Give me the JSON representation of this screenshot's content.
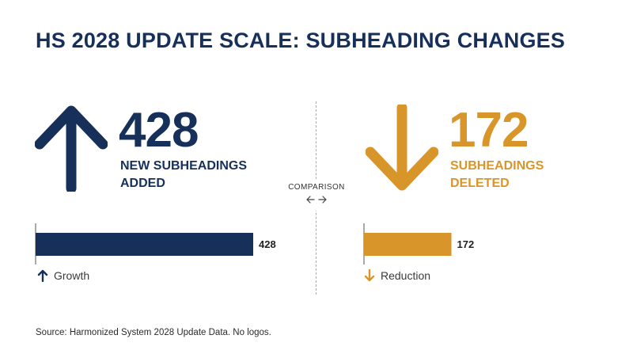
{
  "title": "HS 2028 UPDATE SCALE: SUBHEADING CHANGES",
  "comparison_label": "COMPARISON",
  "stats": [
    {
      "value": "428",
      "label": "NEW SUBHEADINGS\nADDED",
      "icon": "arrow-up-icon",
      "color": "#17305a"
    },
    {
      "value": "172",
      "label": "SUBHEADINGS\nDELETED",
      "icon": "arrow-down-icon",
      "color": "#d8962a"
    }
  ],
  "chart_data": {
    "type": "bar",
    "categories": [
      "Growth",
      "Reduction"
    ],
    "values": [
      428,
      172
    ],
    "data_labels": [
      "428",
      "172"
    ],
    "colors": [
      "#17305a",
      "#d8962a"
    ],
    "legend": [
      {
        "label": "Growth",
        "icon": "arrow-up-icon"
      },
      {
        "label": "Reduction",
        "icon": "arrow-down-icon"
      }
    ]
  },
  "source": "Source: Harmonized System 2028 Update Data. No logos."
}
